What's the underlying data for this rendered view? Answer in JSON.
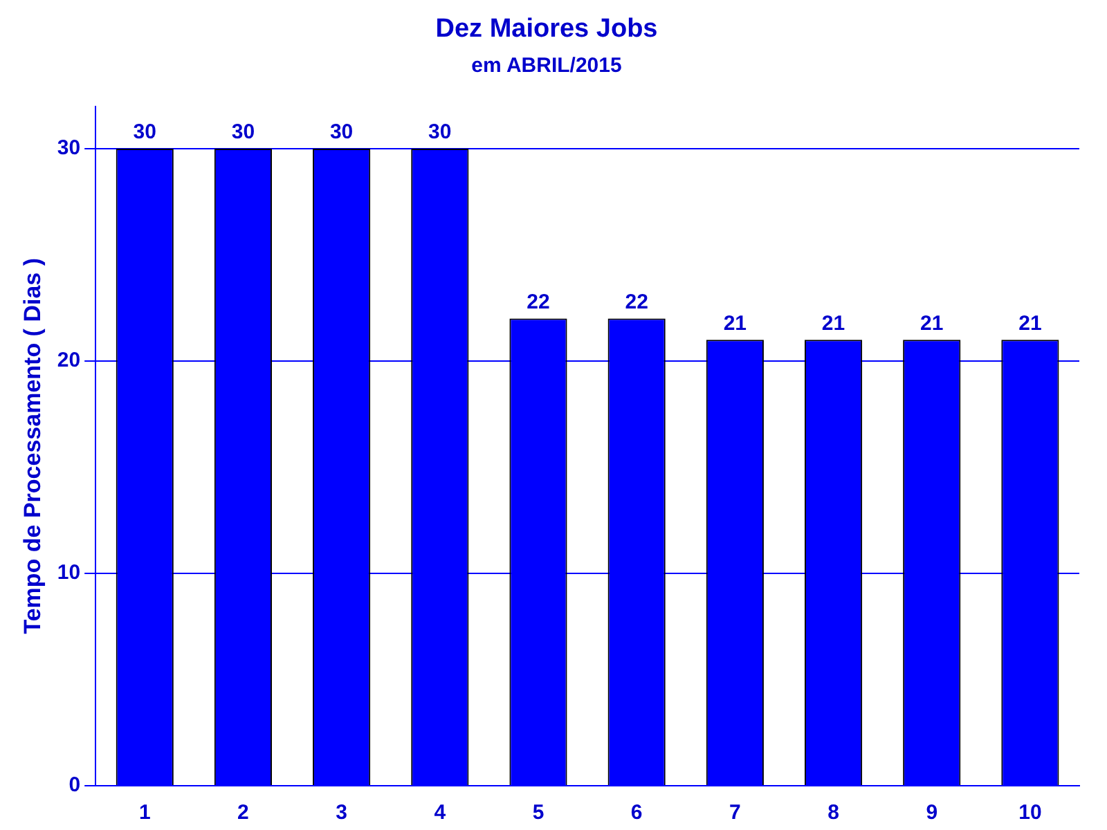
{
  "chart_data": {
    "type": "bar",
    "title": "Dez Maiores Jobs",
    "subtitle": "em ABRIL/2015",
    "ylabel": "Tempo de Processamento ( Dias )",
    "categories": [
      "1",
      "2",
      "3",
      "4",
      "5",
      "6",
      "7",
      "8",
      "9",
      "10"
    ],
    "values": [
      30,
      30,
      30,
      30,
      22,
      22,
      21,
      21,
      21,
      21
    ],
    "color": "#0000ff",
    "ylim": [
      0,
      32
    ],
    "yticks": [
      0,
      10,
      20,
      30
    ],
    "grid": "y",
    "data_labels": true,
    "legend": false
  }
}
